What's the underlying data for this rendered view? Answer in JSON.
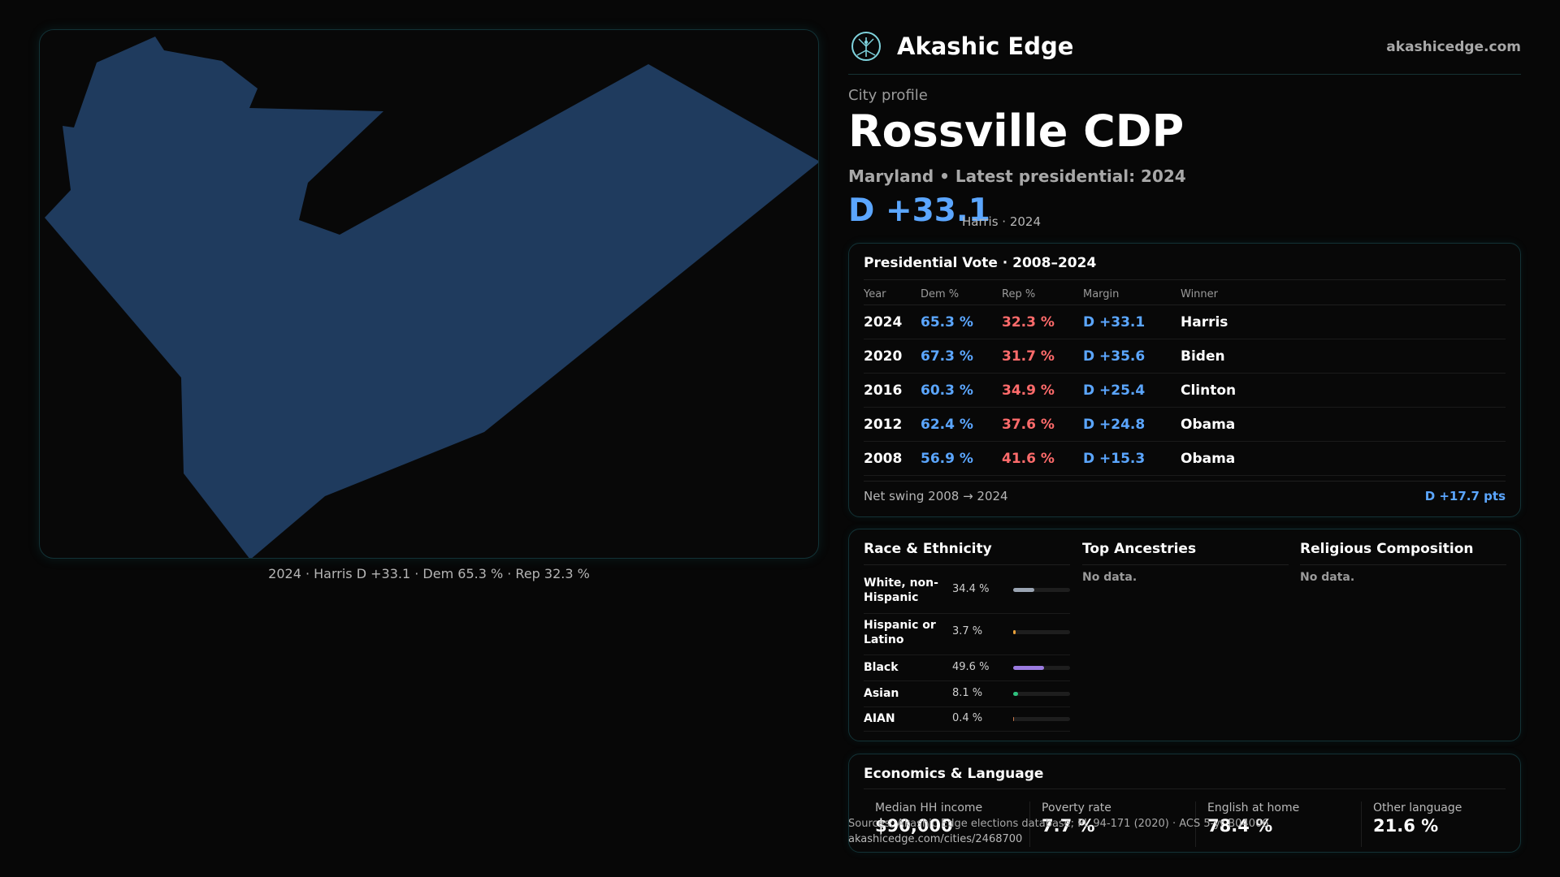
{
  "brand": {
    "name": "Akashic Edge",
    "url": "akashicedge.com",
    "logo_icon": "tree-of-life-icon"
  },
  "header": {
    "kicker": "City profile",
    "city": "Rossville CDP",
    "subtitle": "Maryland • Latest presidential: 2024",
    "margin": "D +33.1",
    "margin_note": "Harris · 2024"
  },
  "map": {
    "caption": "2024 · Harris D +33.1 · Dem 65.3 % · Rep 32.3 %",
    "fill_color": "#1f3b5e",
    "border_color": "#123236"
  },
  "votes": {
    "title": "Presidential Vote · 2008–2024",
    "columns": [
      "Year",
      "Dem %",
      "Rep %",
      "Margin",
      "Winner"
    ],
    "rows": [
      {
        "year": "2024",
        "dem": "65.3 %",
        "rep": "32.3 %",
        "margin": "D +33.1",
        "winner": "Harris"
      },
      {
        "year": "2020",
        "dem": "67.3 %",
        "rep": "31.7 %",
        "margin": "D +35.6",
        "winner": "Biden"
      },
      {
        "year": "2016",
        "dem": "60.3 %",
        "rep": "34.9 %",
        "margin": "D +25.4",
        "winner": "Clinton"
      },
      {
        "year": "2012",
        "dem": "62.4 %",
        "rep": "37.6 %",
        "margin": "D +24.8",
        "winner": "Obama"
      },
      {
        "year": "2008",
        "dem": "56.9 %",
        "rep": "41.6 %",
        "margin": "D +15.3",
        "winner": "Obama"
      }
    ],
    "swing_label": "Net swing 2008 → 2024",
    "swing_value": "D +17.7 pts",
    "colors": {
      "dem": "#5ba6ff",
      "rep": "#ff6b6b"
    }
  },
  "race": {
    "title": "Race & Ethnicity",
    "items": [
      {
        "label": "White, non-Hispanic",
        "value": "34.4 %",
        "share": 0.344,
        "color": "#9aa4b2"
      },
      {
        "label": "Hispanic or Latino",
        "value": "3.7 %",
        "share": 0.037,
        "color": "#e8a13a"
      },
      {
        "label": "Black",
        "value": "49.6 %",
        "share": 0.496,
        "color": "#9b7be0"
      },
      {
        "label": "Asian",
        "value": "8.1 %",
        "share": 0.081,
        "color": "#2ec27e"
      },
      {
        "label": "AIAN",
        "value": "0.4 %",
        "share": 0.004,
        "color": "#c7774a"
      }
    ]
  },
  "ancestries": {
    "title": "Top Ancestries",
    "empty": "No data."
  },
  "religion": {
    "title": "Religious Composition",
    "empty": "No data."
  },
  "economics": {
    "title": "Economics & Language",
    "stats": [
      {
        "label": "Median HH income",
        "value": "$90,000"
      },
      {
        "label": "Poverty rate",
        "value": "7.7 %"
      },
      {
        "label": "English at home",
        "value": "78.4 %"
      },
      {
        "label": "Other language",
        "value": "21.6 %"
      }
    ]
  },
  "footer": {
    "sources": "Sources: Akashic Edge elections database; PL 94-171 (2020) · ACS 5-yr B04006",
    "page_url": "akashicedge.com/cities/2468700"
  }
}
